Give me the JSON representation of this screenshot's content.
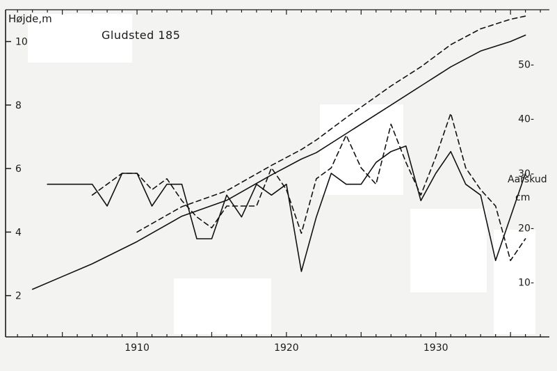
{
  "chart_data": {
    "type": "line",
    "title": "Gludsted 185",
    "left_axis": {
      "label": "Højde,m",
      "ticks": [
        "2",
        "4",
        "6",
        "8",
        "10"
      ],
      "tick_values": [
        2,
        4,
        6,
        8,
        10
      ],
      "range": [
        0.7,
        11.0
      ]
    },
    "right_axis": {
      "label_line1": "Aarskud",
      "label_line2": "cm",
      "ticks": [
        "10-",
        "20-",
        "30-",
        "40-",
        "50-"
      ],
      "tick_values": [
        10,
        20,
        30,
        40,
        50
      ],
      "range": [
        0,
        60
      ]
    },
    "x_axis": {
      "ticks": [
        "1910",
        "1920",
        "1930"
      ],
      "tick_values": [
        1910,
        1920,
        1930
      ],
      "range": [
        1901.2,
        1937.6
      ]
    },
    "grid": false,
    "height_series": [
      {
        "style": "solid",
        "x": [
          1903,
          1905,
          1907,
          1910,
          1913,
          1916,
          1919,
          1921,
          1922,
          1924,
          1927,
          1929,
          1931,
          1933,
          1935,
          1936
        ],
        "y": [
          2.2,
          2.6,
          3.0,
          3.7,
          4.5,
          5.0,
          5.8,
          6.3,
          6.5,
          7.1,
          8.0,
          8.6,
          9.2,
          9.7,
          10.0,
          10.2
        ]
      },
      {
        "style": "dashed",
        "x": [
          1910,
          1913,
          1916,
          1919,
          1921,
          1922,
          1924,
          1927,
          1929,
          1931,
          1933,
          1935,
          1936
        ],
        "y": [
          4.0,
          4.8,
          5.3,
          6.1,
          6.6,
          6.9,
          7.6,
          8.6,
          9.2,
          9.9,
          10.4,
          10.7,
          10.8
        ]
      }
    ],
    "shoot_series": [
      {
        "style": "solid",
        "x": [
          1904,
          1906,
          1907,
          1908,
          1909,
          1910,
          1911,
          1912,
          1913,
          1914,
          1915,
          1916,
          1917,
          1918,
          1919,
          1920,
          1921,
          1922,
          1923,
          1924,
          1925,
          1926,
          1927,
          1928,
          1929,
          1930,
          1931,
          1932,
          1933,
          1934,
          1935,
          1936
        ],
        "y": [
          28,
          28,
          28,
          24,
          30,
          30,
          24,
          28,
          28,
          18,
          18,
          26,
          22,
          28,
          26,
          28,
          12,
          22,
          30,
          28,
          28,
          32,
          34,
          35,
          25,
          30,
          34,
          28,
          26,
          14,
          22,
          30
        ]
      },
      {
        "style": "dashed",
        "x": [
          1907,
          1908,
          1909,
          1910,
          1911,
          1912,
          1913,
          1914,
          1915,
          1916,
          1917,
          1918,
          1919,
          1920,
          1921,
          1922,
          1923,
          1924,
          1925,
          1926,
          1927,
          1928,
          1929,
          1930,
          1931,
          1932,
          1933,
          1934,
          1935,
          1936
        ],
        "y": [
          26,
          28,
          30,
          30,
          27,
          29,
          25,
          22,
          20,
          24,
          24,
          24,
          31,
          27,
          19,
          29,
          31,
          37,
          31,
          28,
          39,
          32,
          26,
          33,
          41,
          31,
          27,
          24,
          14,
          18
        ]
      }
    ]
  }
}
